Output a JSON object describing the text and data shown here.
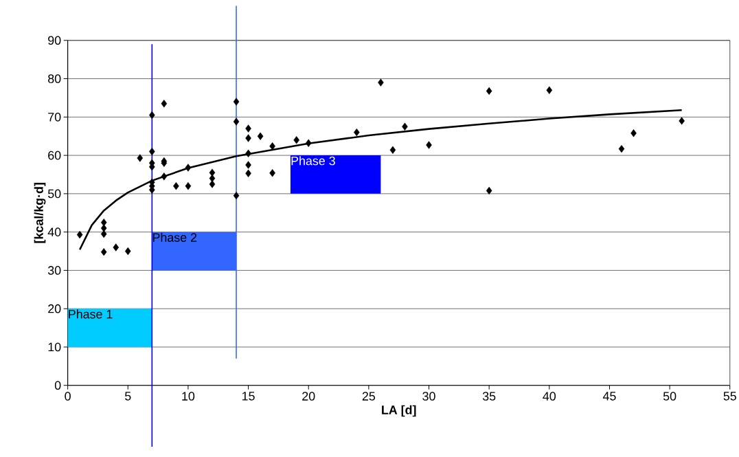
{
  "chart_data": {
    "type": "scatter",
    "xlabel": "LA [d]",
    "ylabel": "[kcal/kg·d]",
    "xlim": [
      0,
      55
    ],
    "xticks": [
      0,
      5,
      10,
      15,
      20,
      25,
      30,
      35,
      40,
      45,
      50,
      55
    ],
    "ylim": [
      0,
      90
    ],
    "yticks": [
      0,
      10,
      20,
      30,
      40,
      50,
      60,
      70,
      80,
      90
    ],
    "grid": "y",
    "series": [
      {
        "type": "scatter",
        "marker": "diamond",
        "color": "#000000",
        "x": [
          1,
          3,
          3,
          3,
          3,
          4,
          5,
          6,
          7,
          7,
          7,
          7,
          7,
          7,
          7,
          8,
          8,
          8,
          8,
          9,
          10,
          10,
          12,
          12,
          12,
          14,
          14,
          14,
          15,
          15,
          15,
          15,
          15,
          16,
          17,
          17,
          19,
          20,
          24,
          26,
          27,
          28,
          30,
          35,
          35,
          40,
          46,
          47,
          51
        ],
        "values": [
          39.3,
          42.5,
          41,
          39.5,
          34.8,
          36,
          35,
          59.3,
          70.5,
          61,
          58,
          57,
          53,
          52,
          51,
          73.5,
          58.5,
          58,
          54.5,
          52,
          52,
          56.8,
          55.5,
          54,
          52.5,
          74,
          68.8,
          49.5,
          67,
          64.5,
          60.5,
          57.5,
          55.3,
          65,
          62.4,
          55.4,
          64,
          63.2,
          66,
          79,
          61.4,
          67.5,
          62.7,
          76.8,
          50.8,
          77,
          61.7,
          65.8,
          69
        ]
      },
      {
        "type": "line",
        "marker": "none",
        "color": "#000000",
        "x": [
          1,
          2,
          3,
          4,
          5,
          7,
          10,
          14,
          20,
          25,
          30,
          35,
          40,
          45,
          51
        ],
        "values": [
          35.4,
          41.8,
          45.6,
          48.2,
          50.3,
          53.4,
          56.7,
          59.8,
          63.1,
          65.2,
          66.9,
          68.3,
          69.6,
          70.7,
          71.8
        ]
      }
    ],
    "ref_lines": [
      {
        "axis": "x",
        "value": 7,
        "color": "#0000ff"
      },
      {
        "axis": "x",
        "value": 14,
        "color": "#3366ff"
      }
    ],
    "bands": [
      {
        "axis": "x",
        "from": 0,
        "to": 7,
        "label": "Phase 1",
        "color": "#00ccff"
      },
      {
        "axis": "x",
        "from": 7,
        "to": 14,
        "label": "Phase 2",
        "color": "#3366ff"
      },
      {
        "axis": "x",
        "from": 18.5,
        "to": 26,
        "label": "Phase 3",
        "color": "#0000ff"
      }
    ]
  }
}
